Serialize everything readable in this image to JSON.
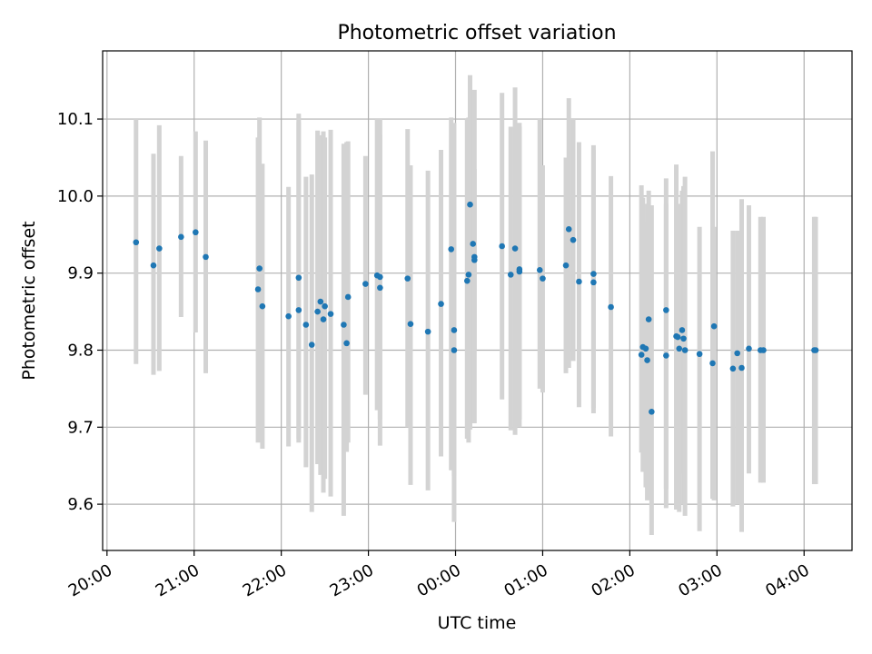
{
  "chart_data": {
    "type": "scatter",
    "title": "Photometric offset variation",
    "xlabel": "UTC time",
    "ylabel": "Photometric offset",
    "x_axis_kind": "time",
    "x_ticks": [
      "20:00",
      "21:00",
      "22:00",
      "23:00",
      "00:00",
      "01:00",
      "02:00",
      "03:00",
      "04:00"
    ],
    "y_ticks": [
      "9.6",
      "9.7",
      "9.8",
      "9.9",
      "10.0",
      "10.1"
    ],
    "xlim": [
      "19:57",
      "04:33"
    ],
    "ylim": [
      9.54,
      10.1885
    ],
    "grid": true,
    "legend": "none",
    "colors": {
      "points": "#1f77b4",
      "error_bars": "#d3d3d3",
      "grid": "#b0b0b0"
    },
    "series": [
      {
        "x": [
          "20:20",
          "20:32",
          "20:36",
          "20:51",
          "21:01",
          "21:08",
          "21:44",
          "21:45",
          "21:47",
          "22:05",
          "22:12",
          "22:12",
          "22:17",
          "22:21",
          "22:25",
          "22:27",
          "22:29",
          "22:30",
          "22:34",
          "22:43",
          "22:45",
          "22:46",
          "22:58",
          "23:06",
          "23:08",
          "23:08",
          "23:27",
          "23:29",
          "23:41",
          "23:50",
          "23:57",
          "23:59",
          "23:59",
          "00:08",
          "00:09",
          "00:10",
          "00:12",
          "00:13",
          "00:13",
          "00:32",
          "00:38",
          "00:41",
          "00:44",
          "00:44",
          "00:58",
          "01:00",
          "01:16",
          "01:18",
          "01:21",
          "01:25",
          "01:35",
          "01:35",
          "01:47",
          "02:08",
          "02:09",
          "02:11",
          "02:12",
          "02:13",
          "02:15",
          "02:25",
          "02:25",
          "02:32",
          "02:33",
          "02:34",
          "02:36",
          "02:37",
          "02:38",
          "02:48",
          "02:57",
          "02:58",
          "03:11",
          "03:14",
          "03:17",
          "03:22",
          "03:30",
          "03:32",
          "04:07",
          "04:08"
        ],
        "y": [
          9.94,
          9.91,
          9.932,
          9.947,
          9.953,
          9.921,
          9.879,
          9.906,
          9.857,
          9.844,
          9.894,
          9.852,
          9.833,
          9.807,
          9.85,
          9.863,
          9.84,
          9.857,
          9.847,
          9.833,
          9.809,
          9.869,
          9.886,
          9.897,
          9.881,
          9.895,
          9.893,
          9.834,
          9.824,
          9.86,
          9.931,
          9.8,
          9.826,
          9.89,
          9.898,
          9.989,
          9.938,
          9.917,
          9.921,
          9.935,
          9.898,
          9.932,
          9.902,
          9.905,
          9.904,
          9.893,
          9.91,
          9.957,
          9.943,
          9.889,
          9.899,
          9.888,
          9.856,
          9.794,
          9.804,
          9.802,
          9.787,
          9.84,
          9.72,
          9.793,
          9.852,
          9.818,
          9.817,
          9.802,
          9.826,
          9.815,
          9.8,
          9.795,
          9.783,
          9.831,
          9.776,
          9.796,
          9.777,
          9.802,
          9.8,
          9.8,
          9.8,
          9.8
        ],
        "y_err_low": [
          9.782,
          9.768,
          9.773,
          9.843,
          9.823,
          9.77,
          9.68,
          9.682,
          9.672,
          9.675,
          9.68,
          9.685,
          9.648,
          9.59,
          9.652,
          9.638,
          9.615,
          9.633,
          9.61,
          9.585,
          9.668,
          9.68,
          9.742,
          9.722,
          9.676,
          9.71,
          9.7,
          9.625,
          9.618,
          9.662,
          9.644,
          9.577,
          9.637,
          9.685,
          9.68,
          9.697,
          9.72,
          9.8,
          9.705,
          9.736,
          9.696,
          9.69,
          9.7,
          9.71,
          9.75,
          9.745,
          9.77,
          9.777,
          9.786,
          9.726,
          9.725,
          9.718,
          9.688,
          9.667,
          9.642,
          9.622,
          9.605,
          9.64,
          9.56,
          9.595,
          9.62,
          9.593,
          9.627,
          9.59,
          9.64,
          9.6,
          9.585,
          9.565,
          9.607,
          9.605,
          9.597,
          9.6,
          9.564,
          9.64,
          9.628,
          9.628,
          9.626,
          9.626
        ],
        "y_err_high": [
          10.1,
          10.055,
          10.092,
          10.052,
          10.084,
          10.072,
          10.076,
          10.102,
          10.042,
          10.012,
          10.107,
          10.096,
          10.025,
          10.028,
          10.085,
          10.079,
          10.084,
          10.076,
          10.086,
          10.068,
          10.07,
          10.071,
          10.052,
          10.1,
          10.1,
          10.08,
          10.087,
          10.04,
          10.033,
          10.06,
          10.102,
          10.095,
          10.018,
          10.1,
          10.102,
          10.157,
          10.113,
          10.035,
          10.138,
          10.134,
          10.09,
          10.141,
          10.09,
          10.095,
          10.1,
          10.04,
          10.05,
          10.127,
          10.1,
          10.07,
          10.066,
          10.06,
          10.026,
          10.014,
          9.998,
          9.967,
          9.99,
          10.007,
          9.988,
          9.99,
          10.023,
          10.041,
          9.99,
          9.968,
          10.007,
          10.013,
          10.025,
          9.96,
          10.058,
          9.96,
          9.955,
          9.955,
          9.996,
          9.988,
          9.973,
          9.973,
          9.973,
          9.973
        ]
      }
    ]
  }
}
